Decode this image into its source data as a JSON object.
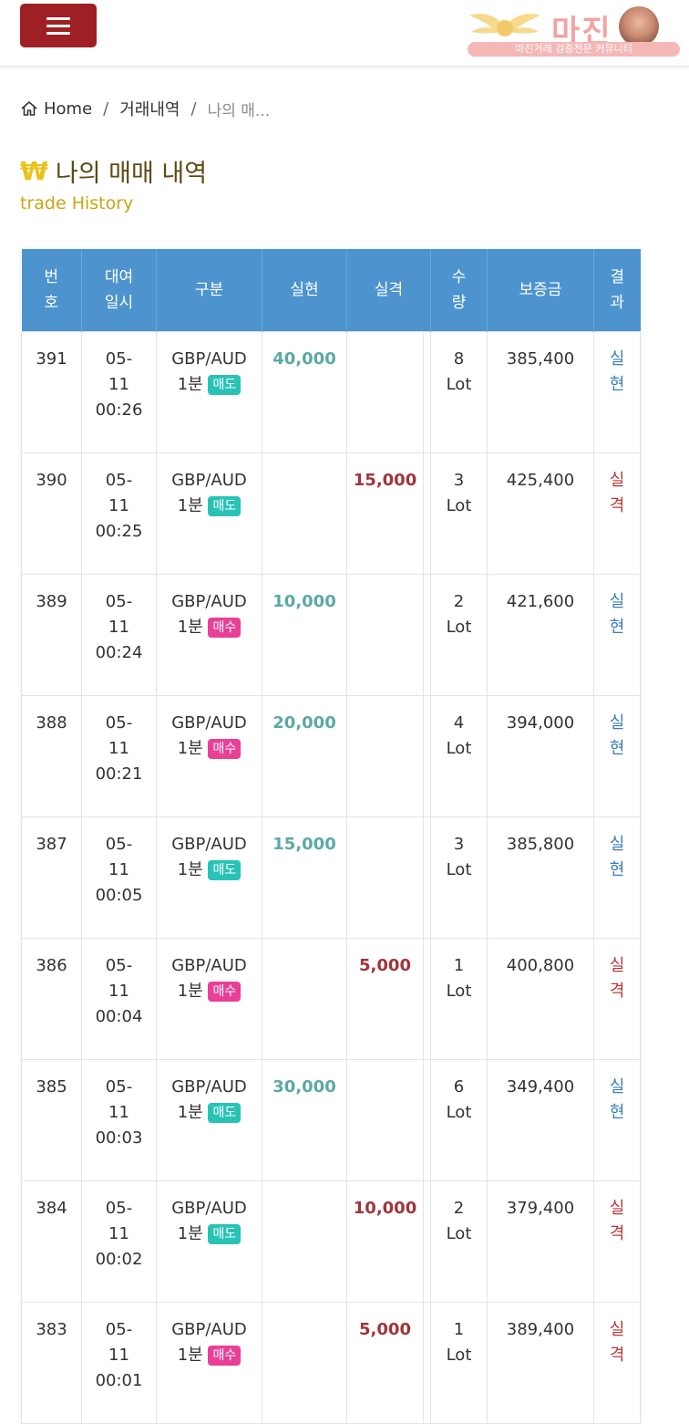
{
  "header": {
    "logo_text": "마진",
    "logo_sub": "마진거래 검증전문 커뮤니티"
  },
  "breadcrumb": {
    "home": "Home",
    "sep": "/",
    "section": "거래내역",
    "current": "나의 매..."
  },
  "page": {
    "title_icon": "₩",
    "title": "나의 매매 내역",
    "subtitle": "trade History"
  },
  "table": {
    "headers": [
      "번\n호",
      "대여\n일시",
      "구분",
      "실현",
      "실격",
      "수\n량",
      "보증금",
      "결\n과"
    ],
    "rows": [
      {
        "no": "391",
        "date": "05-\n11\n00:26",
        "pair": "GBP/AUD",
        "period": "1분",
        "side": "매도",
        "win": "40,000",
        "loss": "",
        "qty": "8\nLot",
        "deposit": "385,400",
        "result": "실\n현"
      },
      {
        "no": "390",
        "date": "05-\n11\n00:25",
        "pair": "GBP/AUD",
        "period": "1분",
        "side": "매도",
        "win": "",
        "loss": "15,000",
        "qty": "3\nLot",
        "deposit": "425,400",
        "result": "실\n격"
      },
      {
        "no": "389",
        "date": "05-\n11\n00:24",
        "pair": "GBP/AUD",
        "period": "1분",
        "side": "매수",
        "win": "10,000",
        "loss": "",
        "qty": "2\nLot",
        "deposit": "421,600",
        "result": "실\n현"
      },
      {
        "no": "388",
        "date": "05-\n11\n00:21",
        "pair": "GBP/AUD",
        "period": "1분",
        "side": "매수",
        "win": "20,000",
        "loss": "",
        "qty": "4\nLot",
        "deposit": "394,000",
        "result": "실\n현"
      },
      {
        "no": "387",
        "date": "05-\n11\n00:05",
        "pair": "GBP/AUD",
        "period": "1분",
        "side": "매도",
        "win": "15,000",
        "loss": "",
        "qty": "3\nLot",
        "deposit": "385,800",
        "result": "실\n현"
      },
      {
        "no": "386",
        "date": "05-\n11\n00:04",
        "pair": "GBP/AUD",
        "period": "1분",
        "side": "매수",
        "win": "",
        "loss": "5,000",
        "qty": "1\nLot",
        "deposit": "400,800",
        "result": "실\n격"
      },
      {
        "no": "385",
        "date": "05-\n11\n00:03",
        "pair": "GBP/AUD",
        "period": "1분",
        "side": "매도",
        "win": "30,000",
        "loss": "",
        "qty": "6\nLot",
        "deposit": "349,400",
        "result": "실\n현"
      },
      {
        "no": "384",
        "date": "05-\n11\n00:02",
        "pair": "GBP/AUD",
        "period": "1분",
        "side": "매도",
        "win": "",
        "loss": "10,000",
        "qty": "2\nLot",
        "deposit": "379,400",
        "result": "실\n격"
      },
      {
        "no": "383",
        "date": "05-\n11\n00:01",
        "pair": "GBP/AUD",
        "period": "1분",
        "side": "매수",
        "win": "",
        "loss": "5,000",
        "qty": "1\nLot",
        "deposit": "389,400",
        "result": "실\n격"
      }
    ]
  },
  "colors": {
    "menu_button": "#9e1f24",
    "table_header": "#4d94cf",
    "win": "#5ba9a6",
    "loss": "#a0353a",
    "sell_badge": "#29c3b6",
    "buy_badge": "#ea3f96",
    "title_accent": "#e8c21a"
  },
  "icons": {
    "menu": "hamburger-icon",
    "home": "home-icon",
    "logo": "wings-logo"
  }
}
